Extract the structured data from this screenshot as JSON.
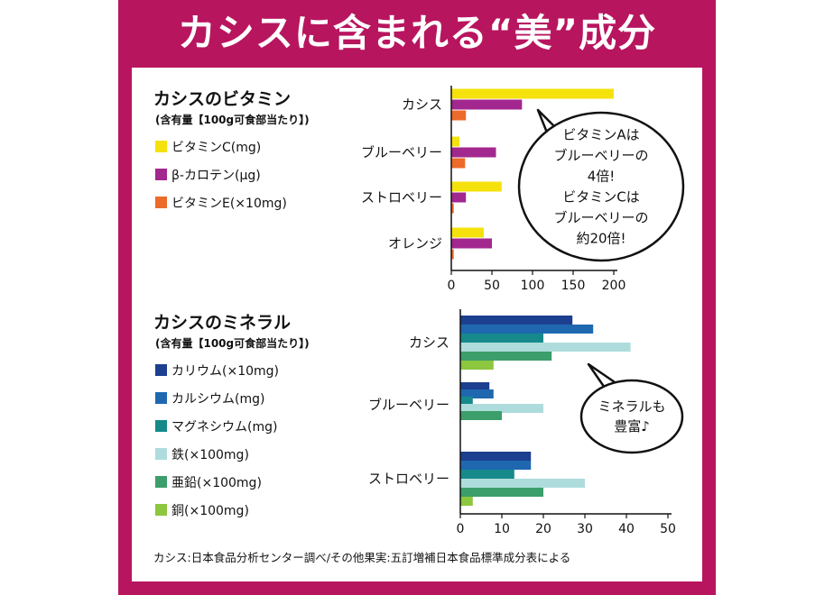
{
  "title": "カシスに含まれる“美”成分",
  "source": "カシス:日本食品分析センター調べ/その他果実:五訂増補日本食品標準成分表による",
  "chart_data": [
    {
      "type": "bar",
      "orientation": "horizontal",
      "title": "カシスのビタミン",
      "subtitle": "(含有量【100g可食部当たり】)",
      "categories": [
        "カシス",
        "ブルーベリー",
        "ストロベリー",
        "オレンジ"
      ],
      "series": [
        {
          "name": "ビタミンC(mg)",
          "color": "#f5e20c",
          "values": [
            200,
            10,
            62,
            40
          ]
        },
        {
          "name": "β-カロテン(μg)",
          "color": "#a2278f",
          "values": [
            87,
            55,
            18,
            50
          ]
        },
        {
          "name": "ビタミンE(×10mg)",
          "color": "#ec6a2a",
          "values": [
            18,
            17,
            3,
            3
          ]
        }
      ],
      "xlim": [
        0,
        200
      ],
      "xticks": [
        0,
        50,
        100,
        150,
        200
      ],
      "legend_position": "left",
      "annotation": [
        "ビタミンAは",
        "ブルーベリーの",
        "4倍!",
        "ビタミンCは",
        "ブルーベリーの",
        "約20倍!"
      ]
    },
    {
      "type": "bar",
      "orientation": "horizontal",
      "title": "カシスのミネラル",
      "subtitle": "(含有量【100g可食部当たり】)",
      "categories": [
        "カシス",
        "ブルーベリー",
        "ストロベリー"
      ],
      "series": [
        {
          "name": "カリウム(×10mg)",
          "color": "#1d3f8f",
          "values": [
            27,
            7,
            17
          ]
        },
        {
          "name": "カルシウム(mg)",
          "color": "#1f68b0",
          "values": [
            32,
            8,
            17
          ]
        },
        {
          "name": "マグネシウム(mg)",
          "color": "#168a8a",
          "values": [
            20,
            3,
            13
          ]
        },
        {
          "name": "鉄(×100mg)",
          "color": "#aedcdc",
          "values": [
            41,
            20,
            30
          ]
        },
        {
          "name": "亜鉛(×100mg)",
          "color": "#3c9e6a",
          "values": [
            22,
            10,
            20
          ]
        },
        {
          "name": "銅(×100mg)",
          "color": "#8dc63f",
          "values": [
            8,
            0,
            3
          ]
        }
      ],
      "xlim": [
        0,
        50
      ],
      "xticks": [
        0,
        10,
        20,
        30,
        40,
        50
      ],
      "legend_position": "left",
      "annotation": [
        "ミネラルも",
        "豊富♪"
      ]
    }
  ]
}
